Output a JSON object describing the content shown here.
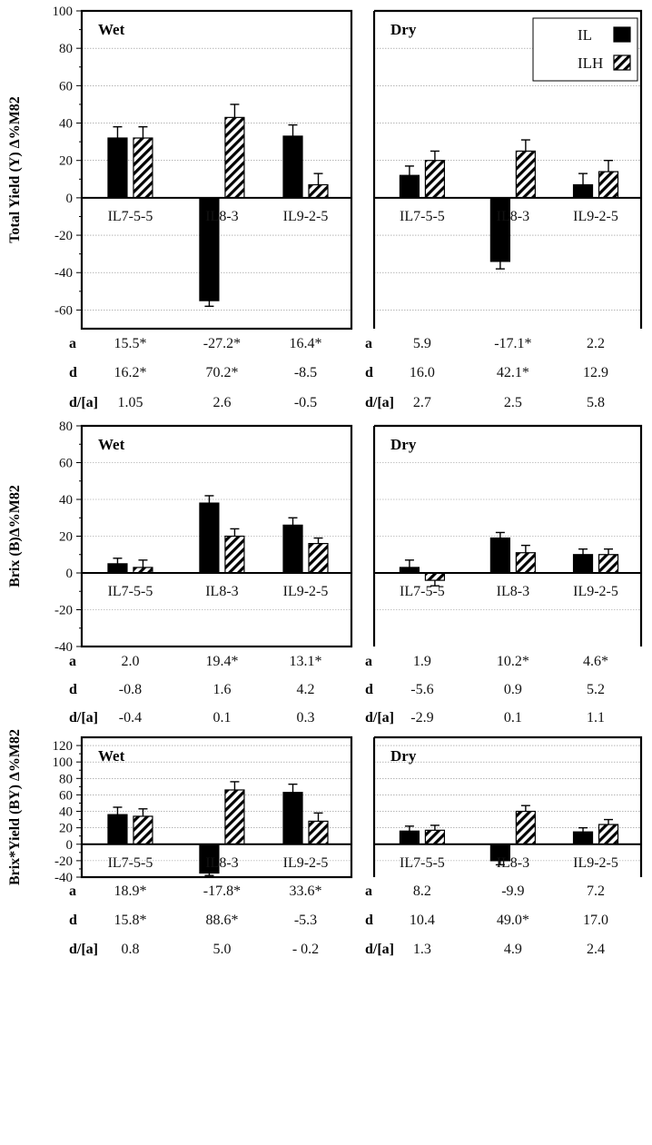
{
  "legend": [
    {
      "label": "IL",
      "fill": "solid"
    },
    {
      "label": "ILH",
      "fill": "hatch"
    }
  ],
  "colors": {
    "bar": "#000000",
    "grid": "#888888",
    "frame": "#000000"
  },
  "stat_labels": [
    "a",
    "d",
    "d/[a]"
  ],
  "chart_data": [
    {
      "type": "bar",
      "ylabel": "Total Yield (Y) Δ%M82",
      "ylim": [
        -70,
        100
      ],
      "yticks": [
        -60,
        -40,
        -20,
        0,
        20,
        40,
        60,
        80,
        100
      ],
      "categories": [
        "IL7-5-5",
        "IL8-3",
        "IL9-2-5"
      ],
      "panels": [
        {
          "condition": "Wet",
          "series": [
            {
              "name": "IL",
              "values": [
                32,
                -55,
                33
              ],
              "errors": [
                6,
                3,
                6
              ]
            },
            {
              "name": "ILH",
              "values": [
                32,
                43,
                7
              ],
              "errors": [
                6,
                7,
                6
              ]
            }
          ],
          "stats": {
            "a": [
              "15.5*",
              "-27.2*",
              "16.4*"
            ],
            "d": [
              "16.2*",
              "70.2*",
              "-8.5"
            ],
            "d/[a]": [
              "1.05",
              "2.6",
              "-0.5"
            ]
          }
        },
        {
          "condition": "Dry",
          "series": [
            {
              "name": "IL",
              "values": [
                12,
                -34,
                7
              ],
              "errors": [
                5,
                4,
                6
              ]
            },
            {
              "name": "ILH",
              "values": [
                20,
                25,
                14
              ],
              "errors": [
                5,
                6,
                6
              ]
            }
          ],
          "stats": {
            "a": [
              "5.9",
              "-17.1*",
              "2.2"
            ],
            "d": [
              "16.0",
              "42.1*",
              "12.9"
            ],
            "d/[a]": [
              "2.7",
              "2.5",
              "5.8"
            ]
          }
        }
      ]
    },
    {
      "type": "bar",
      "ylabel": "Brix (B)Δ%M82",
      "ylim": [
        -40,
        80
      ],
      "yticks": [
        -40,
        -20,
        0,
        20,
        40,
        60,
        80
      ],
      "categories": [
        "IL7-5-5",
        "IL8-3",
        "IL9-2-5"
      ],
      "panels": [
        {
          "condition": "Wet",
          "series": [
            {
              "name": "IL",
              "values": [
                5,
                38,
                26
              ],
              "errors": [
                3,
                4,
                4
              ]
            },
            {
              "name": "ILH",
              "values": [
                3,
                20,
                16
              ],
              "errors": [
                4,
                4,
                3
              ]
            }
          ],
          "stats": {
            "a": [
              "2.0",
              "19.4*",
              "13.1*"
            ],
            "d": [
              "-0.8",
              "1.6",
              "4.2"
            ],
            "d/[a]": [
              "-0.4",
              "0.1",
              "0.3"
            ]
          }
        },
        {
          "condition": "Dry",
          "series": [
            {
              "name": "IL",
              "values": [
                3,
                19,
                10
              ],
              "errors": [
                4,
                3,
                3
              ]
            },
            {
              "name": "ILH",
              "values": [
                -4,
                11,
                10
              ],
              "errors": [
                3,
                4,
                3
              ]
            }
          ],
          "stats": {
            "a": [
              "1.9",
              "10.2*",
              "4.6*"
            ],
            "d": [
              "-5.6",
              "0.9",
              "5.2"
            ],
            "d/[a]": [
              "-2.9",
              "0.1",
              "1.1"
            ]
          }
        }
      ]
    },
    {
      "type": "bar",
      "ylabel": "Brix*Yield (BY) Δ%M82",
      "ylim": [
        -40,
        130
      ],
      "yticks": [
        -40,
        -20,
        0,
        20,
        40,
        60,
        80,
        100,
        120
      ],
      "categories": [
        "IL7-5-5",
        "IL8-3",
        "IL9-2-5"
      ],
      "panels": [
        {
          "condition": "Wet",
          "series": [
            {
              "name": "IL",
              "values": [
                36,
                -35,
                63
              ],
              "errors": [
                9,
                3,
                10
              ]
            },
            {
              "name": "ILH",
              "values": [
                34,
                66,
                28
              ],
              "errors": [
                9,
                10,
                10
              ]
            }
          ],
          "stats": {
            "a": [
              "18.9*",
              "-17.8*",
              "33.6*"
            ],
            "d": [
              "15.8*",
              "88.6*",
              "-5.3"
            ],
            "d/[a]": [
              "0.8",
              "5.0",
              "- 0.2"
            ]
          }
        },
        {
          "condition": "Dry",
          "series": [
            {
              "name": "IL",
              "values": [
                16,
                -20,
                15
              ],
              "errors": [
                6,
                5,
                5
              ]
            },
            {
              "name": "ILH",
              "values": [
                17,
                40,
                24
              ],
              "errors": [
                6,
                7,
                6
              ]
            }
          ],
          "stats": {
            "a": [
              "8.2",
              "-9.9",
              "7.2"
            ],
            "d": [
              "10.4",
              "49.0*",
              "17.0"
            ],
            "d/[a]": [
              "1.3",
              "4.9",
              "2.4"
            ]
          }
        }
      ]
    }
  ]
}
